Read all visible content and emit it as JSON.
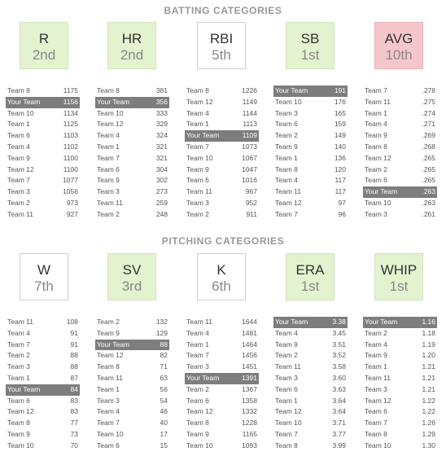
{
  "batting": {
    "title": "BATTING CATEGORIES",
    "categories": [
      {
        "name": "R",
        "rank": "2nd",
        "status": "good",
        "rows": [
          [
            "Team 8",
            "1175"
          ],
          [
            "Your Team",
            "1156"
          ],
          [
            "Team 10",
            "1134"
          ],
          [
            "Team 1",
            "1125"
          ],
          [
            "Team 6",
            "1103"
          ],
          [
            "Team 4",
            "1102"
          ],
          [
            "Team 9",
            "1100"
          ],
          [
            "Team 12",
            "1100"
          ],
          [
            "Team 7",
            "1077"
          ],
          [
            "Team 3",
            "1056"
          ],
          [
            "Team 2",
            "973"
          ],
          [
            "Team 11",
            "927"
          ]
        ]
      },
      {
        "name": "HR",
        "rank": "2nd",
        "status": "good",
        "rows": [
          [
            "Team 8",
            "381"
          ],
          [
            "Your Team",
            "356"
          ],
          [
            "Team 10",
            "333"
          ],
          [
            "Team 12",
            "329"
          ],
          [
            "Team 4",
            "324"
          ],
          [
            "Team 1",
            "321"
          ],
          [
            "Team 7",
            "321"
          ],
          [
            "Team 6",
            "304"
          ],
          [
            "Team 9",
            "302"
          ],
          [
            "Team 3",
            "273"
          ],
          [
            "Team 11",
            "259"
          ],
          [
            "Team 2",
            "248"
          ]
        ]
      },
      {
        "name": "RBI",
        "rank": "5th",
        "status": "neutral",
        "rows": [
          [
            "Team 8",
            "1226"
          ],
          [
            "Team 12",
            "1149"
          ],
          [
            "Team 4",
            "1144"
          ],
          [
            "Team 1",
            "1113"
          ],
          [
            "Your Team",
            "1109"
          ],
          [
            "Team 7",
            "1073"
          ],
          [
            "Team 10",
            "1067"
          ],
          [
            "Team 9",
            "1047"
          ],
          [
            "Team 6",
            "1016"
          ],
          [
            "Team 11",
            "967"
          ],
          [
            "Team 3",
            "952"
          ],
          [
            "Team 2",
            "911"
          ]
        ]
      },
      {
        "name": "SB",
        "rank": "1st",
        "status": "good",
        "rows": [
          [
            "Your Team",
            "191"
          ],
          [
            "Team 10",
            "176"
          ],
          [
            "Team 3",
            "165"
          ],
          [
            "Team 6",
            "159"
          ],
          [
            "Team 2",
            "149"
          ],
          [
            "Team 9",
            "140"
          ],
          [
            "Team 1",
            "136"
          ],
          [
            "Team 8",
            "120"
          ],
          [
            "Team 4",
            "117"
          ],
          [
            "Team 11",
            "117"
          ],
          [
            "Team 12",
            "97"
          ],
          [
            "Team 7",
            "96"
          ]
        ]
      },
      {
        "name": "AVG",
        "rank": "10th",
        "status": "bad",
        "rows": [
          [
            "Team 7",
            ".278"
          ],
          [
            "Team 11",
            ".275"
          ],
          [
            "Team 1",
            ".274"
          ],
          [
            "Team 4",
            ".271"
          ],
          [
            "Team 9",
            ".269"
          ],
          [
            "Team 8",
            ".268"
          ],
          [
            "Team 12",
            ".265"
          ],
          [
            "Team 2",
            ".265"
          ],
          [
            "Team 6",
            ".265"
          ],
          [
            "Your Team",
            ".263"
          ],
          [
            "Team 10",
            ".263"
          ],
          [
            "Team 3",
            ".261"
          ]
        ]
      }
    ]
  },
  "pitching": {
    "title": "PITCHING CATEGORIES",
    "categories": [
      {
        "name": "W",
        "rank": "7th",
        "status": "neutral",
        "rows": [
          [
            "Team 11",
            "108"
          ],
          [
            "Team 4",
            "91"
          ],
          [
            "Team 7",
            "91"
          ],
          [
            "Team 2",
            "88"
          ],
          [
            "Team 3",
            "88"
          ],
          [
            "Team 1",
            "87"
          ],
          [
            "Your Team",
            "84"
          ],
          [
            "Team 6",
            "83"
          ],
          [
            "Team 12",
            "83"
          ],
          [
            "Team 8",
            "77"
          ],
          [
            "Team 9",
            "73"
          ],
          [
            "Team 10",
            "70"
          ]
        ]
      },
      {
        "name": "SV",
        "rank": "3rd",
        "status": "good",
        "rows": [
          [
            "Team 2",
            "132"
          ],
          [
            "Team 9",
            "129"
          ],
          [
            "Your Team",
            "88"
          ],
          [
            "Team 12",
            "82"
          ],
          [
            "Team 8",
            "71"
          ],
          [
            "Team 11",
            "63"
          ],
          [
            "Team 1",
            "56"
          ],
          [
            "Team 3",
            "54"
          ],
          [
            "Team 4",
            "46"
          ],
          [
            "Team 7",
            "40"
          ],
          [
            "Team 10",
            "17"
          ],
          [
            "Team 6",
            "15"
          ]
        ]
      },
      {
        "name": "K",
        "rank": "6th",
        "status": "neutral",
        "rows": [
          [
            "Team 11",
            "1644"
          ],
          [
            "Team 4",
            "1481"
          ],
          [
            "Team 1",
            "1464"
          ],
          [
            "Team 7",
            "1456"
          ],
          [
            "Team 3",
            "1451"
          ],
          [
            "Your Team",
            "1391"
          ],
          [
            "Team 2",
            "1367"
          ],
          [
            "Team 6",
            "1358"
          ],
          [
            "Team 12",
            "1332"
          ],
          [
            "Team 8",
            "1228"
          ],
          [
            "Team 9",
            "1165"
          ],
          [
            "Team 10",
            "1093"
          ]
        ]
      },
      {
        "name": "ERA",
        "rank": "1st",
        "status": "good",
        "rows": [
          [
            "Your Team",
            "3.38"
          ],
          [
            "Team 4",
            "3.45"
          ],
          [
            "Team 9",
            "3.51"
          ],
          [
            "Team 2",
            "3.52"
          ],
          [
            "Team 11",
            "3.58"
          ],
          [
            "Team 3",
            "3.60"
          ],
          [
            "Team 6",
            "3.63"
          ],
          [
            "Team 1",
            "3.64"
          ],
          [
            "Team 12",
            "3.64"
          ],
          [
            "Team 10",
            "3.71"
          ],
          [
            "Team 7",
            "3.77"
          ],
          [
            "Team 8",
            "3.99"
          ]
        ]
      },
      {
        "name": "WHIP",
        "rank": "1st",
        "status": "good",
        "rows": [
          [
            "Your Team",
            "1.16"
          ],
          [
            "Team 2",
            "1.18"
          ],
          [
            "Team 4",
            "1.19"
          ],
          [
            "Team 9",
            "1.20"
          ],
          [
            "Team 1",
            "1.21"
          ],
          [
            "Team 11",
            "1.21"
          ],
          [
            "Team 3",
            "1.21"
          ],
          [
            "Team 12",
            "1.22"
          ],
          [
            "Team 6",
            "1.22"
          ],
          [
            "Team 7",
            "1.26"
          ],
          [
            "Team 8",
            "1.29"
          ],
          [
            "Team 10",
            "1.30"
          ]
        ]
      }
    ]
  },
  "highlight_team": "Your Team",
  "colors": {
    "good": "#e3f2cf",
    "bad": "#f5c6cc",
    "highlight": "#7d7d7d"
  }
}
